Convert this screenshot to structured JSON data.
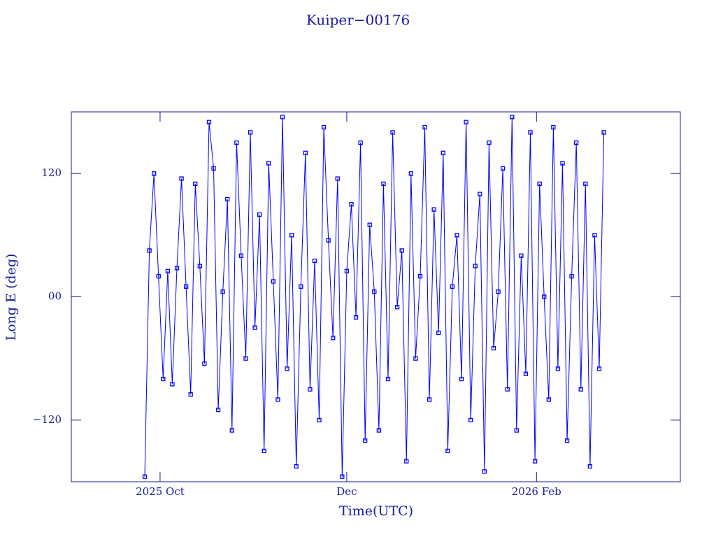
{
  "chart_data": {
    "type": "line",
    "title": "Kuiper−00176",
    "xlabel": "Time(UTC)",
    "ylabel": "Long E (deg)",
    "color": "#0000ff",
    "markers": "square",
    "xlim": [
      0,
      199
    ],
    "xticks": [
      {
        "value": 29,
        "label": "2025 Oct"
      },
      {
        "value": 90,
        "label": "Dec"
      },
      {
        "value": 152,
        "label": "2026 Feb"
      }
    ],
    "ylim": [
      -180,
      180
    ],
    "yticks": [
      {
        "value": -120,
        "label": "−120"
      },
      {
        "value": 0,
        "label": "00"
      },
      {
        "value": 120,
        "label": "120"
      }
    ],
    "x": [
      24,
      25.5,
      27,
      28.5,
      30,
      31.5,
      33,
      34.5,
      36,
      37.5,
      39,
      40.5,
      42,
      43.5,
      45,
      46.5,
      48,
      49.5,
      51,
      52.5,
      54,
      55.5,
      57,
      58.5,
      60,
      61.5,
      63,
      64.5,
      66,
      67.5,
      69,
      70.5,
      72,
      73.5,
      75,
      76.5,
      78,
      79.5,
      81,
      82.5,
      84,
      85.5,
      87,
      88.5,
      90,
      91.5,
      93,
      94.5,
      96,
      97.5,
      99,
      100.5,
      102,
      103.5,
      105,
      106.5,
      108,
      109.5,
      111,
      112.5,
      114,
      115.5,
      117,
      118.5,
      120,
      121.5,
      123,
      124.5,
      126,
      127.5,
      129,
      130.5,
      132,
      133.5,
      135,
      136.5,
      138,
      139.5,
      141,
      142.5,
      144,
      145.5,
      147,
      148.5,
      150,
      151.5,
      153,
      154.5,
      156,
      157.5,
      159,
      160.5,
      162,
      163.5,
      165,
      166.5,
      168,
      169.5,
      171,
      172.5,
      174
    ],
    "values": [
      -175,
      45,
      120,
      20,
      -80,
      25,
      -85,
      28,
      115,
      10,
      -95,
      110,
      30,
      -65,
      170,
      125,
      -110,
      5,
      95,
      -130,
      150,
      40,
      -60,
      160,
      -30,
      80,
      -150,
      130,
      15,
      -100,
      175,
      -70,
      60,
      -165,
      10,
      140,
      -90,
      35,
      -120,
      165,
      55,
      -40,
      115,
      -175,
      25,
      90,
      -20,
      150,
      -140,
      70,
      5,
      -130,
      110,
      -80,
      160,
      -10,
      45,
      -160,
      120,
      -60,
      20,
      165,
      -100,
      85,
      -35,
      140,
      -150,
      10,
      60,
      -80,
      170,
      -120,
      30,
      100,
      -170,
      150,
      -50,
      5,
      125,
      -90,
      175,
      -130,
      40,
      -75,
      160,
      -160,
      110,
      0,
      -100,
      165,
      -70,
      130,
      -140,
      20,
      150,
      -90,
      110,
      -165,
      60,
      -70,
      160
    ]
  }
}
